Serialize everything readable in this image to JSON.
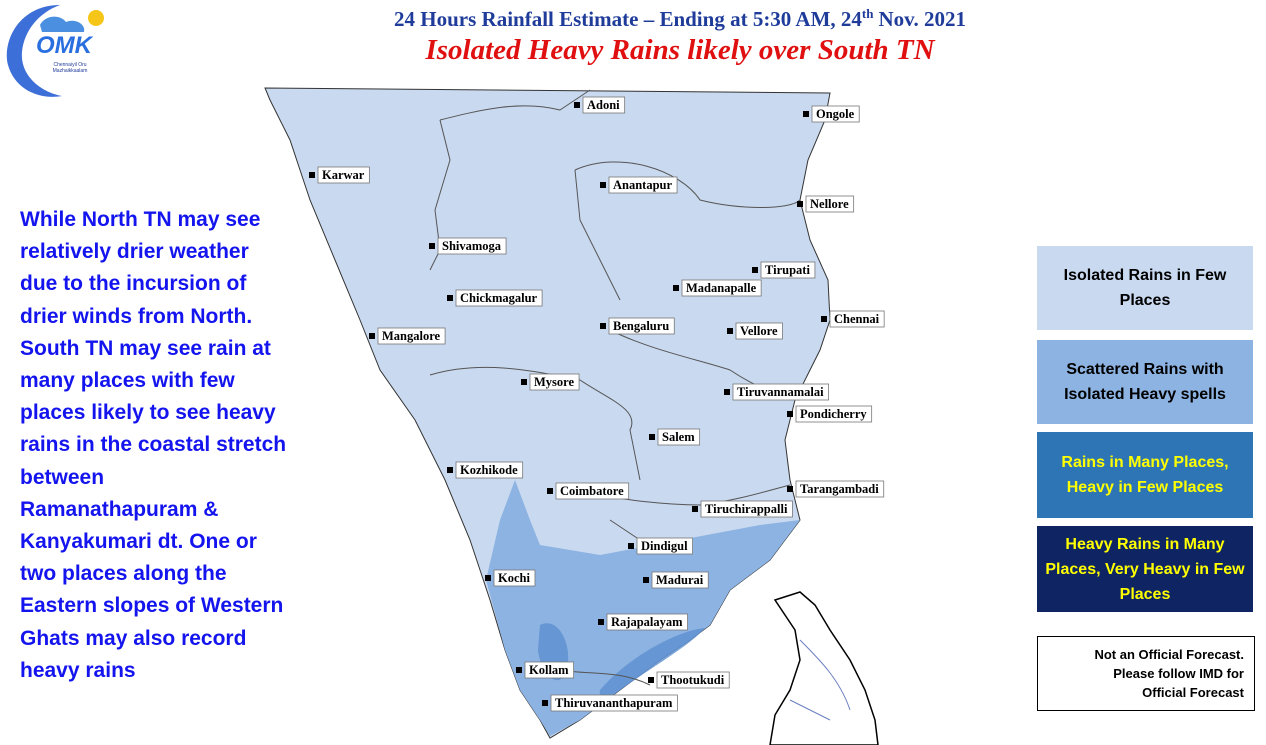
{
  "header": {
    "title_prefix": "24 Hours Rainfall Estimate – Ending at 5:30 AM, 24",
    "title_sup": "th",
    "title_suffix": "Nov. 2021",
    "subtitle": "Isolated Heavy Rains likely over South TN"
  },
  "logo": {
    "text": "OMK",
    "tagline_1": "Chennaiyil Oru",
    "tagline_2": "Mazhaikkaalam"
  },
  "description": [
    "While North TN may see",
    "relatively drier weather",
    "due to the incursion of",
    "drier winds from North.",
    "South TN may see rain at",
    "many places with few",
    "places likely to see heavy",
    "rains in the coastal stretch",
    "between",
    "Ramanathapuram &",
    "Kanyakumari dt. One or",
    "two places along the",
    "Eastern slopes of Western",
    "Ghats may also record",
    "heavy rains"
  ],
  "legend": [
    {
      "label": "Isolated Rains in Few Places"
    },
    {
      "label": "Scattered Rains with Isolated Heavy spells"
    },
    {
      "label": "Rains in Many Places, Heavy in Few Places"
    },
    {
      "label": "Heavy Rains in Many Places, Very Heavy in Few Places"
    }
  ],
  "disclaimer": [
    "Not an Official Forecast.",
    "Please follow IMD for",
    "Official Forecast"
  ],
  "places": [
    {
      "label": "Adoni"
    },
    {
      "label": "Ongole"
    },
    {
      "label": "Karwar"
    },
    {
      "label": "Anantapur"
    },
    {
      "label": "Nellore"
    },
    {
      "label": "Shivamoga"
    },
    {
      "label": "Tirupati"
    },
    {
      "label": "Madanapalle"
    },
    {
      "label": "Chickmagalur"
    },
    {
      "label": "Chennai"
    },
    {
      "label": "Bengaluru"
    },
    {
      "label": "Vellore"
    },
    {
      "label": "Mangalore"
    },
    {
      "label": "Mysore"
    },
    {
      "label": "Tiruvannamalai"
    },
    {
      "label": "Pondicherry"
    },
    {
      "label": "Salem"
    },
    {
      "label": "Kozhikode"
    },
    {
      "label": "Coimbatore"
    },
    {
      "label": "Tarangambadi"
    },
    {
      "label": "Tiruchirappalli"
    },
    {
      "label": "Dindigul"
    },
    {
      "label": "Kochi"
    },
    {
      "label": "Madurai"
    },
    {
      "label": "Rajapalayam"
    },
    {
      "label": "Kollam"
    },
    {
      "label": "Thootukudi"
    },
    {
      "label": "Thiruvananthapuram"
    }
  ]
}
